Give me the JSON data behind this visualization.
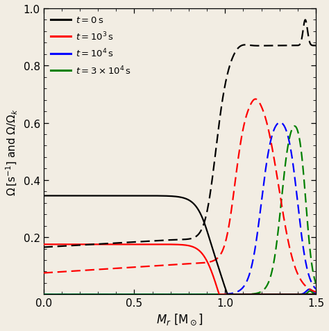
{
  "xlim": [
    0.0,
    1.5
  ],
  "ylim": [
    0.0,
    1.0
  ],
  "xticks": [
    0.0,
    0.5,
    1.0,
    1.5
  ],
  "yticks": [
    0.2,
    0.4,
    0.6,
    0.8,
    1.0
  ],
  "background_color": "#f2ede3",
  "line_width": 1.6
}
